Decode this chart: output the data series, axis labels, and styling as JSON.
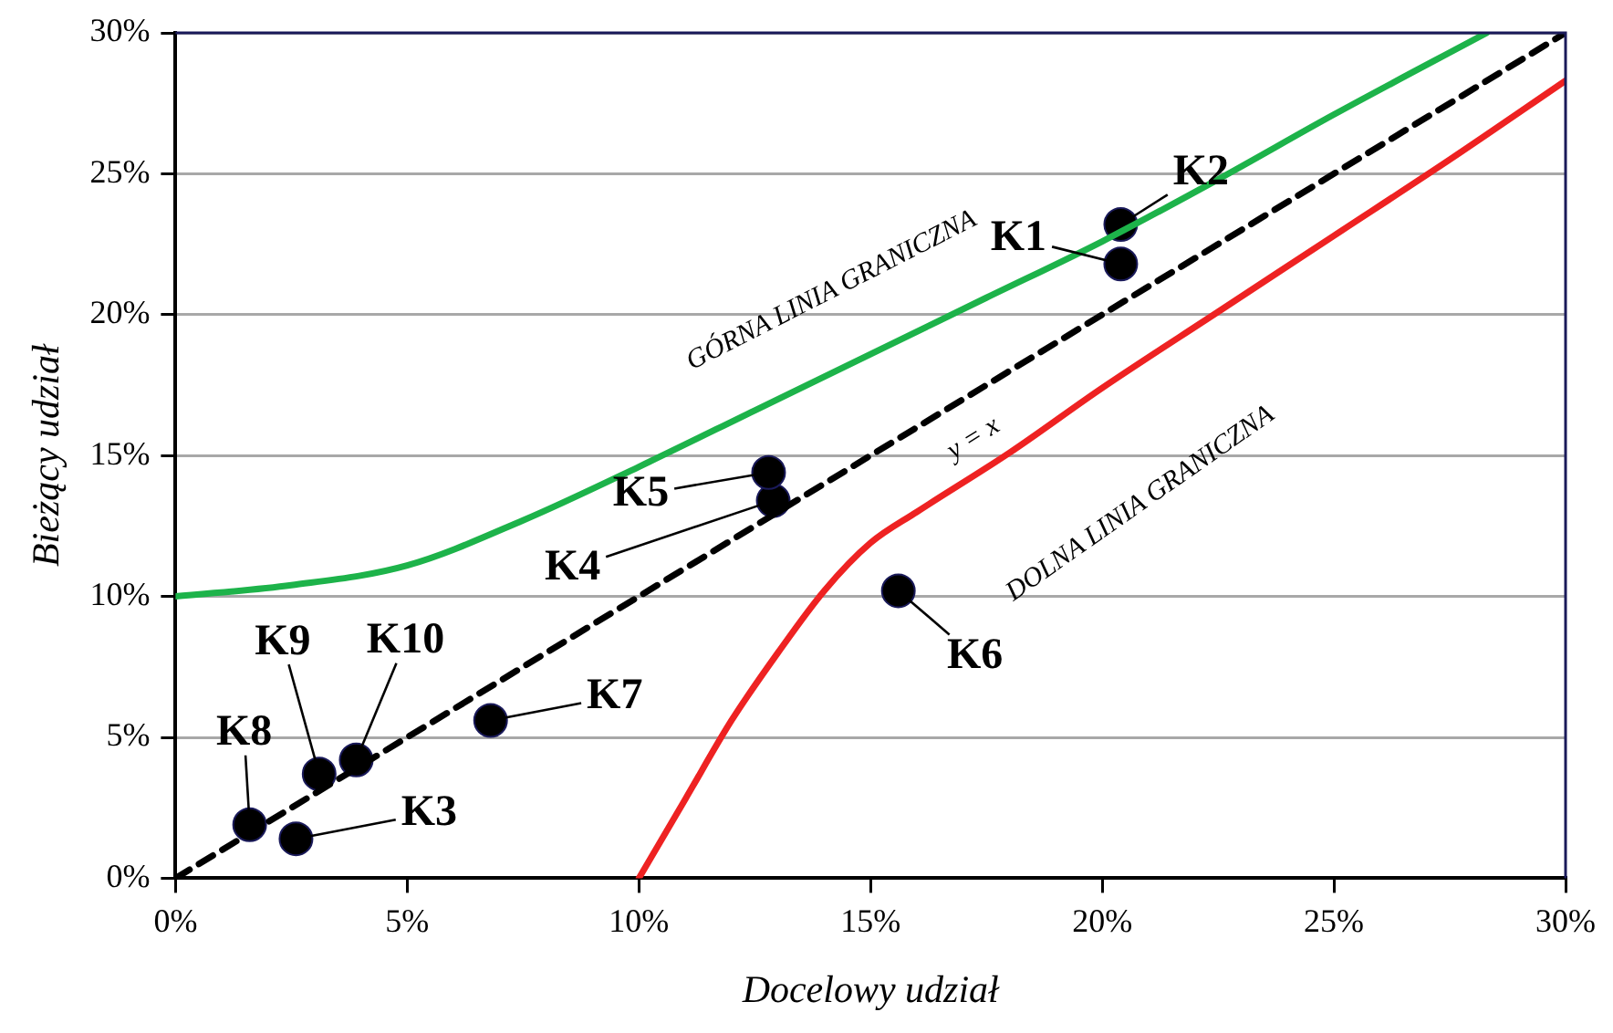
{
  "chart_data": {
    "type": "scatter",
    "xlabel": "Docelowy udział",
    "ylabel": "Bieżący udział",
    "xlim": [
      0,
      30
    ],
    "ylim": [
      0,
      30
    ],
    "xticks": [
      {
        "value": 0,
        "label": "0%"
      },
      {
        "value": 5,
        "label": "5%"
      },
      {
        "value": 10,
        "label": "10%"
      },
      {
        "value": 15,
        "label": "15%"
      },
      {
        "value": 20,
        "label": "20%"
      },
      {
        "value": 25,
        "label": "25%"
      },
      {
        "value": 30,
        "label": "30%"
      }
    ],
    "yticks": [
      {
        "value": 0,
        "label": "0%"
      },
      {
        "value": 5,
        "label": "5%"
      },
      {
        "value": 10,
        "label": "10%"
      },
      {
        "value": 15,
        "label": "15%"
      },
      {
        "value": 20,
        "label": "20%"
      },
      {
        "value": 25,
        "label": "25%"
      },
      {
        "value": 30,
        "label": "30%"
      }
    ],
    "grid": "y",
    "legend": false,
    "series": [
      {
        "type": "line",
        "color": "#1db34a",
        "line_style": "solid",
        "marker": "none",
        "x": [
          0,
          2.5,
          5,
          7.5,
          10,
          12.5,
          15,
          17.5,
          20,
          22.5,
          25,
          28.3
        ],
        "values": [
          10,
          10.4,
          11.1,
          12.7,
          14.6,
          16.6,
          18.6,
          20.6,
          22.6,
          24.8,
          27.1,
          30
        ]
      },
      {
        "type": "line",
        "color": "#ee2222",
        "line_style": "solid",
        "marker": "none",
        "x": [
          10,
          11,
          12,
          13,
          14,
          15,
          16,
          18,
          20,
          22.5,
          25,
          27.5,
          30
        ],
        "values": [
          0,
          2.8,
          5.6,
          8,
          10.2,
          11.9,
          13,
          15.1,
          17.4,
          20.1,
          22.8,
          25.5,
          28.3
        ]
      },
      {
        "type": "line",
        "color": "#000000",
        "line_style": "dashed",
        "marker": "none",
        "x": [
          0,
          30
        ],
        "values": [
          0,
          30
        ]
      },
      {
        "type": "scatter",
        "color": "#000000",
        "marker": "circle",
        "x": [
          20.4,
          20.4,
          2.6,
          12.9,
          12.8,
          15.6,
          6.8,
          1.6,
          3.1,
          3.9
        ],
        "values": [
          21.8,
          23.2,
          1.4,
          13.4,
          14.4,
          10.2,
          5.6,
          1.9,
          3.7,
          4.2
        ]
      }
    ],
    "annotations": [
      "GÓRNA LINIA GRANICZNA",
      "y = x",
      "DOLNA LINIA GRANICZNA",
      {
        "text": "K1",
        "x": 20.4,
        "y": 21.8
      },
      {
        "text": "K2",
        "x": 20.4,
        "y": 23.2
      },
      {
        "text": "K3",
        "x": 2.6,
        "y": 1.4
      },
      {
        "text": "K4",
        "x": 12.9,
        "y": 13.4
      },
      {
        "text": "K5",
        "x": 12.8,
        "y": 14.4
      },
      {
        "text": "K6",
        "x": 15.6,
        "y": 10.2
      },
      {
        "text": "K7",
        "x": 6.8,
        "y": 5.6
      },
      {
        "text": "K8",
        "x": 1.6,
        "y": 1.9
      },
      {
        "text": "K9",
        "x": 3.1,
        "y": 3.7
      },
      {
        "text": "K10",
        "x": 3.9,
        "y": 4.2
      }
    ]
  }
}
